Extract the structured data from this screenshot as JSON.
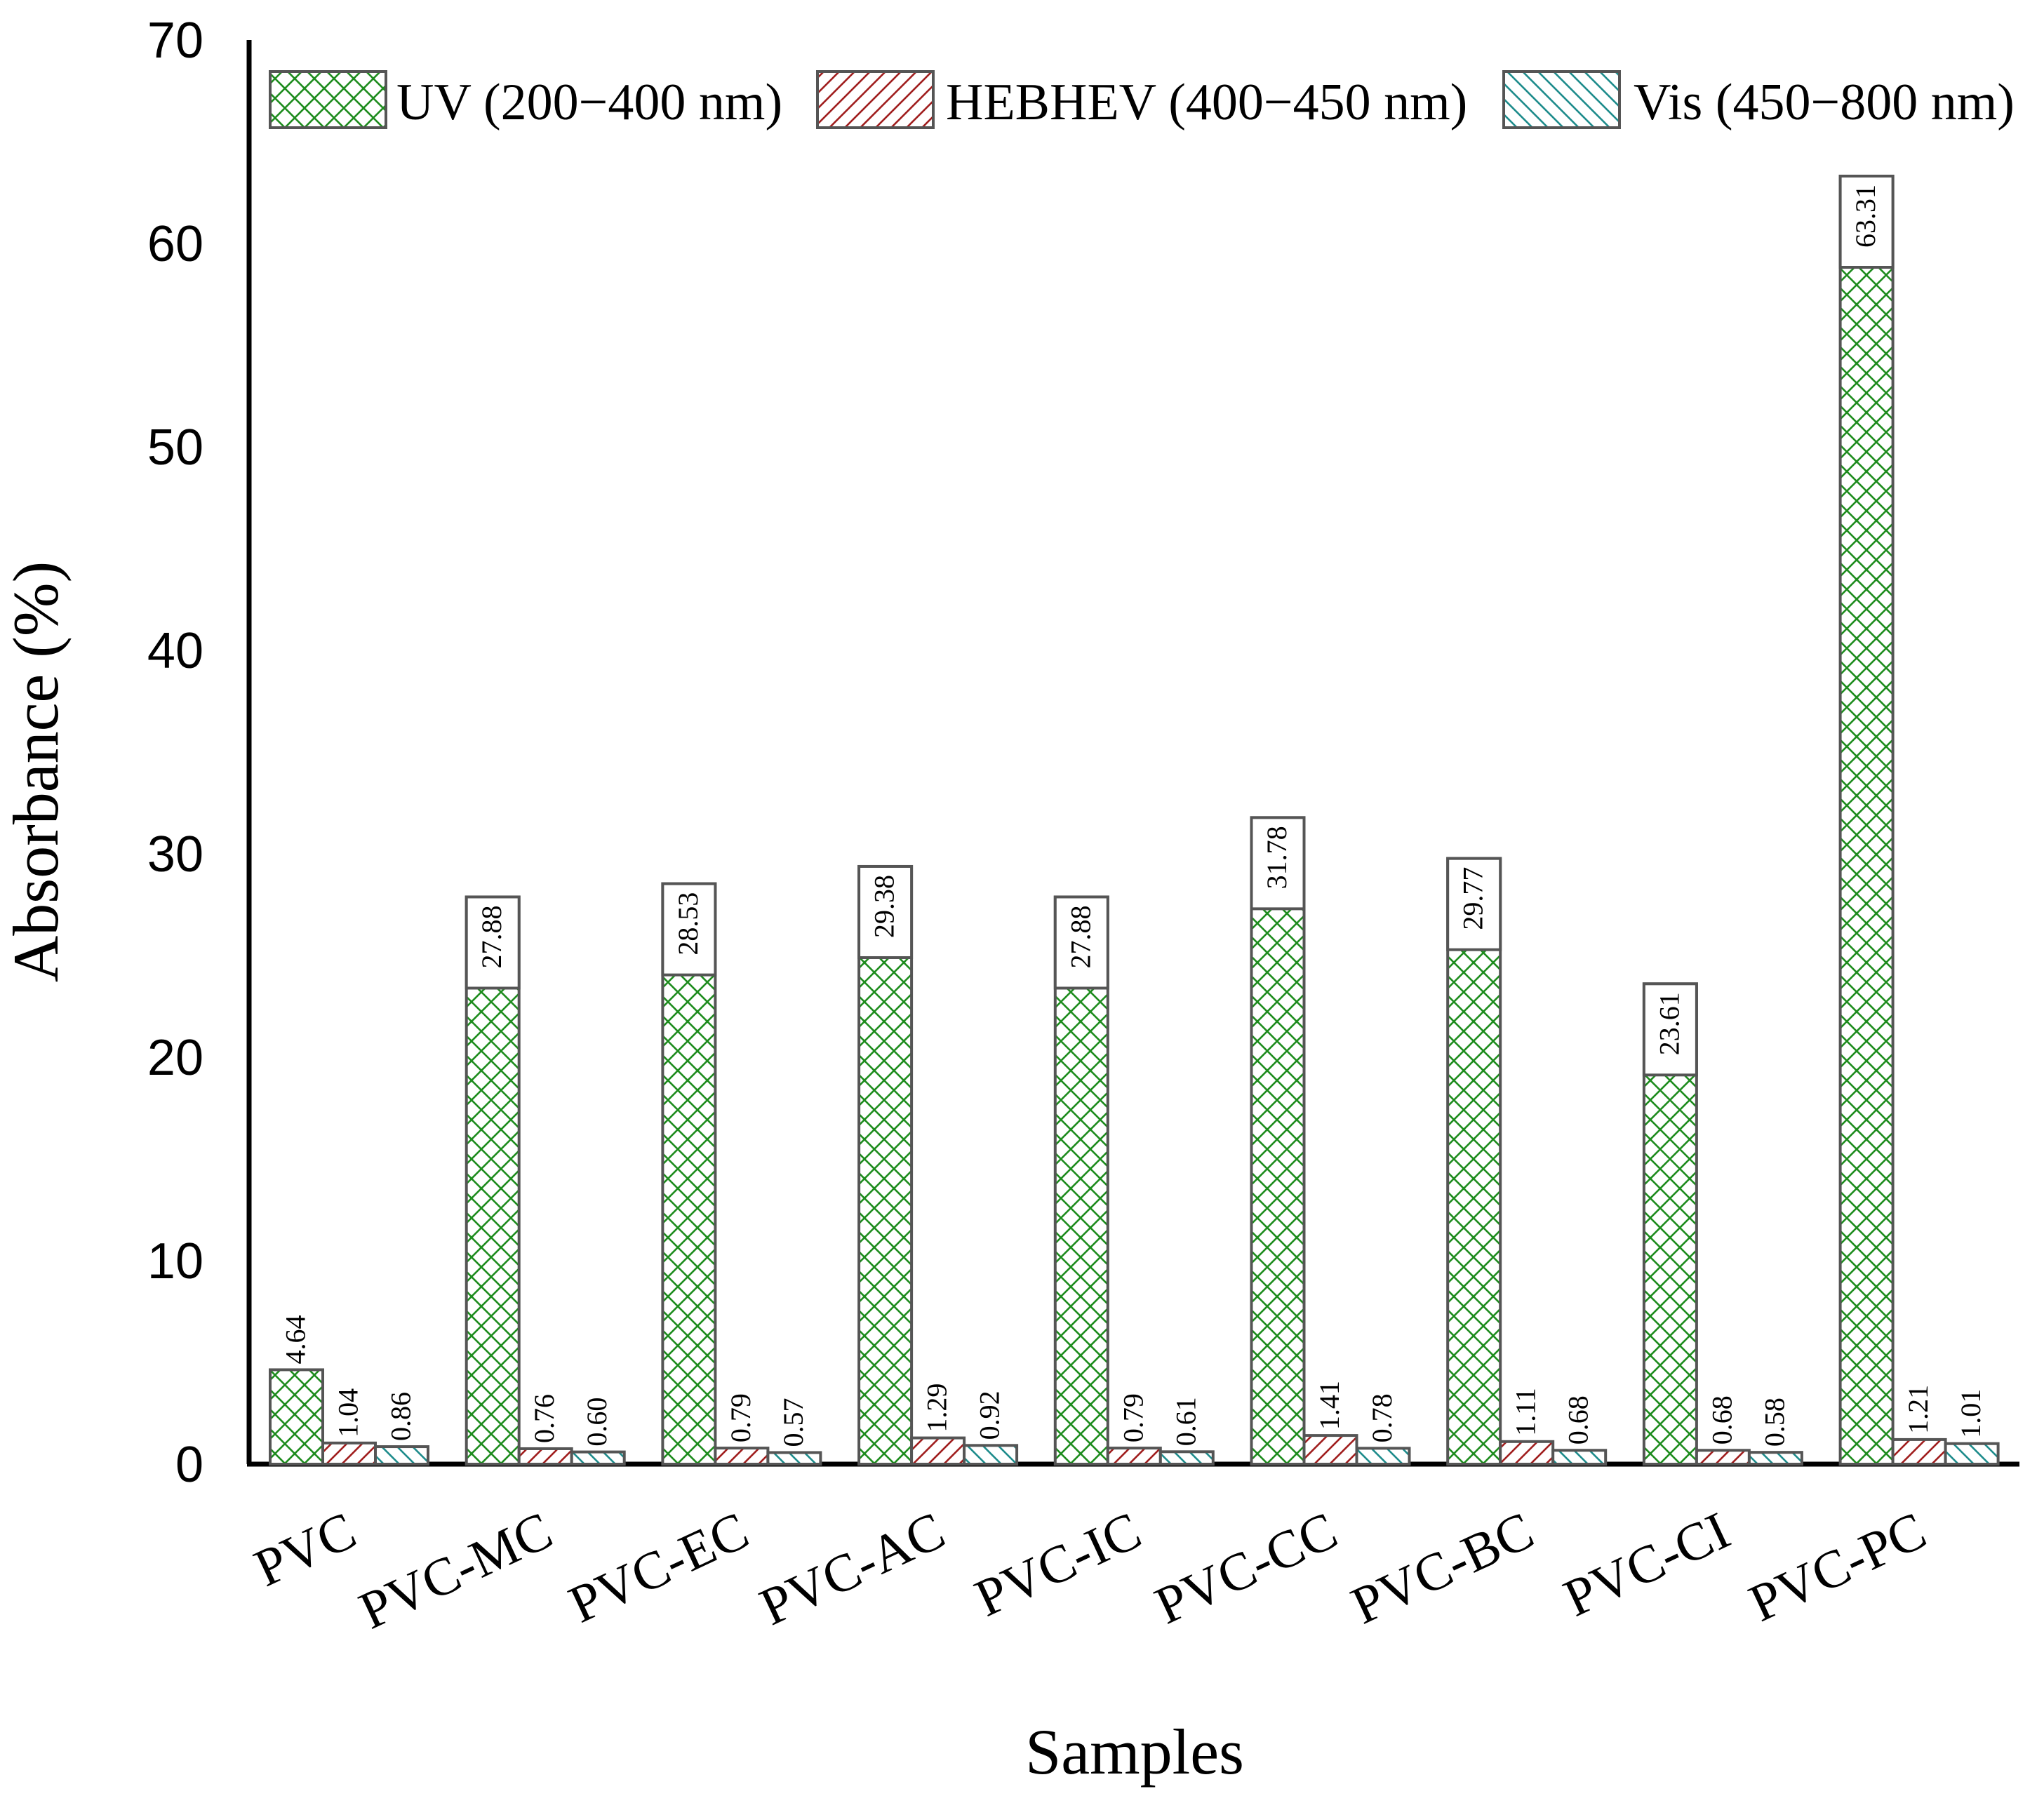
{
  "chart_data": {
    "type": "bar",
    "title": "",
    "xlabel": "Samples",
    "ylabel": "Absorbance (%)",
    "ylim": [
      0,
      70
    ],
    "yticks": [
      0,
      10,
      20,
      30,
      40,
      50,
      60,
      70
    ],
    "grid": false,
    "legend_position": "top",
    "categories": [
      "PVC",
      "PVC-MC",
      "PVC-EC",
      "PVC-AC",
      "PVC-IC",
      "PVC-CC",
      "PVC-BC",
      "PVC-CI",
      "PVC-PC"
    ],
    "series": [
      {
        "name": "UV (200−400 nm)",
        "pattern": "crosshatch",
        "color": "#1e8c1e",
        "values": [
          4.64,
          27.88,
          28.53,
          29.38,
          27.88,
          31.78,
          29.77,
          23.61,
          63.31
        ],
        "labels": [
          "4.64",
          "27.88",
          "28.53",
          "29.38",
          "27.88",
          "31.78",
          "29.77",
          "23.61",
          "63.31"
        ]
      },
      {
        "name": "HEBHEV (400−450 nm)",
        "pattern": "diagonal-up",
        "color": "#a01e1e",
        "values": [
          1.04,
          0.76,
          0.79,
          1.29,
          0.79,
          1.41,
          1.11,
          0.68,
          1.21
        ],
        "labels": [
          "1.04",
          "0.76",
          "0.79",
          "1.29",
          "0.79",
          "1.41",
          "1.11",
          "0.68",
          "1.21"
        ]
      },
      {
        "name": "Vis (450−800 nm)",
        "pattern": "diagonal-down",
        "color": "#1e8c8c",
        "values": [
          0.86,
          0.6,
          0.57,
          0.92,
          0.61,
          0.78,
          0.68,
          0.58,
          1.01
        ],
        "labels": [
          "0.86",
          "0.60",
          "0.57",
          "0.92",
          "0.61",
          "0.78",
          "0.68",
          "0.58",
          "1.01"
        ]
      }
    ]
  }
}
